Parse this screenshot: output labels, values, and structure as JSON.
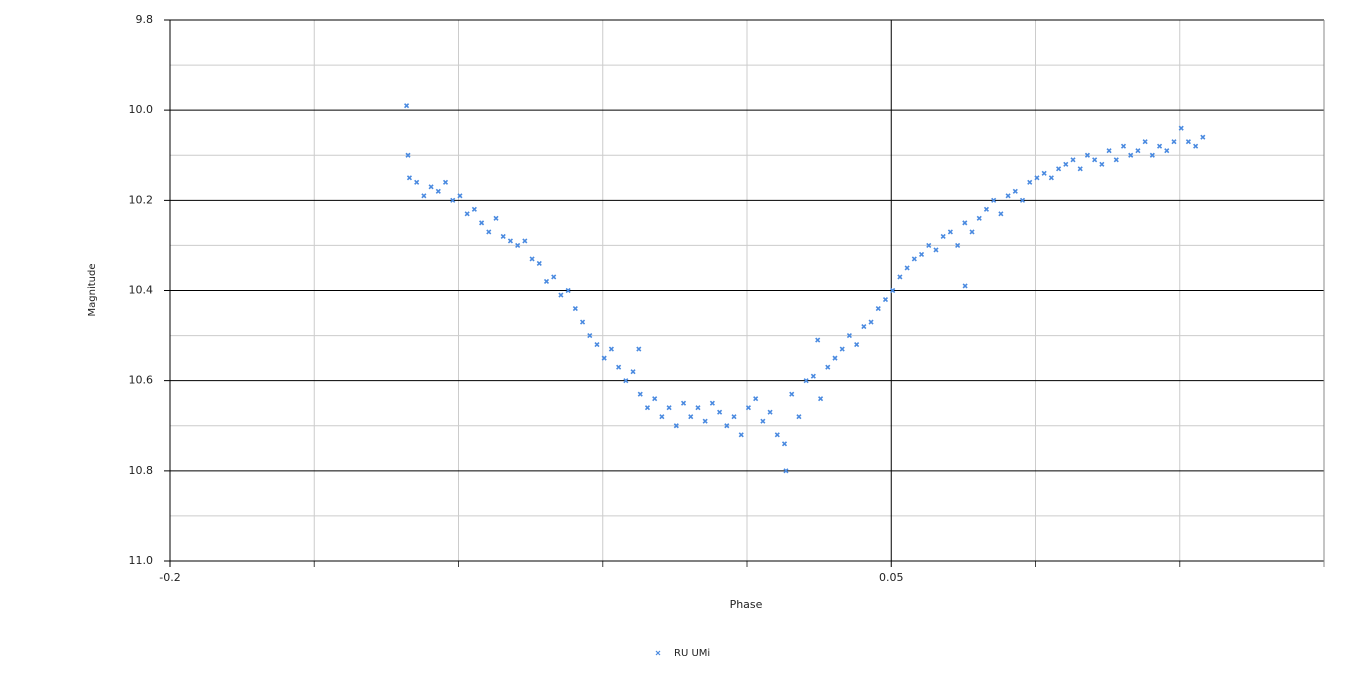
{
  "chart_data": {
    "type": "scatter",
    "x_label": "Phase",
    "y_label": "Magnitude",
    "xlim": [
      -0.2,
      0.2
    ],
    "ylim": [
      9.8,
      11.0
    ],
    "y_inverted": true,
    "xticks": [
      -0.2,
      0.05
    ],
    "yticks": [
      9.8,
      {
        "value": 10,
        "label": "10.0"
      },
      10.2,
      10.4,
      10.6,
      10.8,
      {
        "value": 11,
        "label": "11.0"
      }
    ],
    "xgrid": [
      -0.15,
      -0.1,
      -0.05,
      0,
      0.1,
      0.15
    ],
    "ygrid_minor": [
      9.9,
      10.1,
      10.3,
      10.5,
      10.7,
      10.9
    ],
    "grid": true,
    "legend": "bottom",
    "series": [
      {
        "name": "RU UMi",
        "color": "#4a8ae0",
        "x": [
          -0.118,
          -0.1175,
          -0.117,
          -0.1145,
          -0.112,
          -0.1095,
          -0.107,
          -0.1045,
          -0.102,
          -0.0995,
          -0.097,
          -0.0945,
          -0.092,
          -0.0895,
          -0.087,
          -0.0845,
          -0.082,
          -0.0795,
          -0.077,
          -0.0745,
          -0.072,
          -0.0695,
          -0.067,
          -0.0645,
          -0.062,
          -0.0595,
          -0.057,
          -0.0545,
          -0.052,
          -0.0495,
          -0.047,
          -0.0445,
          -0.042,
          -0.0395,
          -0.0375,
          -0.037,
          -0.0345,
          -0.032,
          -0.0295,
          -0.027,
          -0.0245,
          -0.022,
          -0.0195,
          -0.017,
          -0.0145,
          -0.012,
          -0.0095,
          -0.007,
          -0.0045,
          -0.002,
          0.0005,
          0.003,
          0.0055,
          0.008,
          0.0105,
          0.013,
          0.0135,
          0.0155,
          0.018,
          0.0205,
          0.023,
          0.0245,
          0.0255,
          0.028,
          0.0305,
          0.033,
          0.0355,
          0.038,
          0.0405,
          0.043,
          0.0455,
          0.048,
          0.0505,
          0.053,
          0.0555,
          0.058,
          0.0605,
          0.063,
          0.0655,
          0.068,
          0.0705,
          0.073,
          0.0755,
          0.0756,
          0.078,
          0.0805,
          0.083,
          0.0855,
          0.088,
          0.0905,
          0.093,
          0.0955,
          0.098,
          0.1005,
          0.103,
          0.1055,
          0.108,
          0.1105,
          0.113,
          0.1155,
          0.118,
          0.1205,
          0.123,
          0.1255,
          0.128,
          0.1305,
          0.133,
          0.1355,
          0.138,
          0.1405,
          0.143,
          0.1455,
          0.148,
          0.1505,
          0.153,
          0.1555,
          0.158
        ],
        "values": [
          9.99,
          10.1,
          10.15,
          10.16,
          10.19,
          10.17,
          10.18,
          10.16,
          10.2,
          10.19,
          10.23,
          10.22,
          10.25,
          10.27,
          10.24,
          10.28,
          10.29,
          10.3,
          10.29,
          10.33,
          10.34,
          10.38,
          10.37,
          10.41,
          10.4,
          10.44,
          10.47,
          10.5,
          10.52,
          10.55,
          10.53,
          10.57,
          10.6,
          10.58,
          10.53,
          10.63,
          10.66,
          10.64,
          10.68,
          10.66,
          10.7,
          10.65,
          10.68,
          10.66,
          10.69,
          10.65,
          10.67,
          10.7,
          10.68,
          10.72,
          10.66,
          10.64,
          10.69,
          10.67,
          10.72,
          10.74,
          10.8,
          10.63,
          10.68,
          10.6,
          10.59,
          10.51,
          10.64,
          10.57,
          10.55,
          10.53,
          10.5,
          10.52,
          10.48,
          10.47,
          10.44,
          10.42,
          10.4,
          10.37,
          10.35,
          10.33,
          10.32,
          10.3,
          10.31,
          10.28,
          10.27,
          10.3,
          10.25,
          10.39,
          10.27,
          10.24,
          10.22,
          10.2,
          10.23,
          10.19,
          10.18,
          10.2,
          10.16,
          10.15,
          10.14,
          10.15,
          10.13,
          10.12,
          10.11,
          10.13,
          10.1,
          10.11,
          10.12,
          10.09,
          10.11,
          10.08,
          10.1,
          10.09,
          10.07,
          10.1,
          10.08,
          10.09,
          10.07,
          10.04,
          10.07,
          10.08,
          10.06
        ]
      }
    ]
  }
}
